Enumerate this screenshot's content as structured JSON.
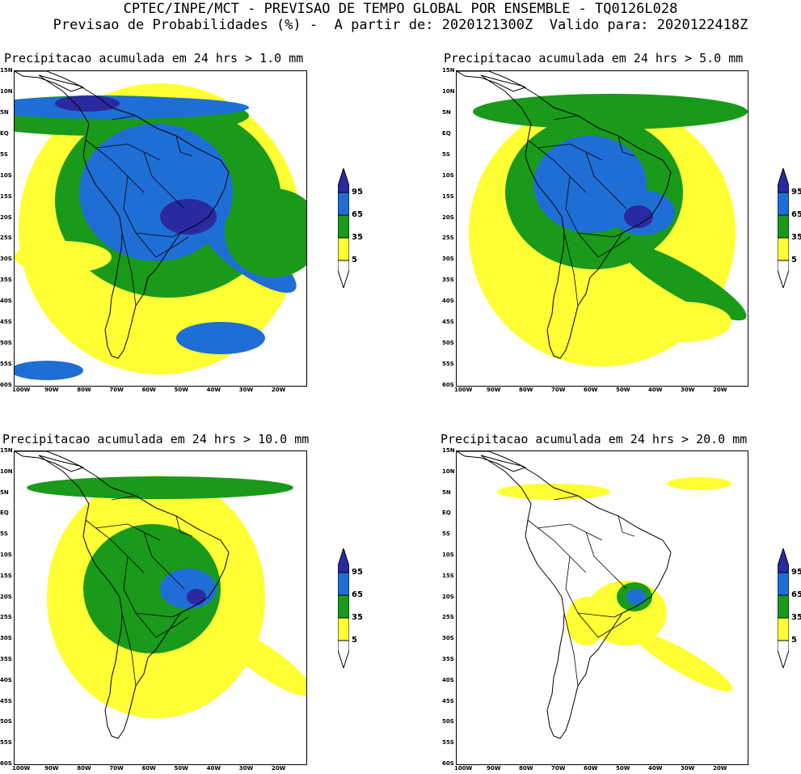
{
  "header": {
    "line1": "CPTEC/INPE/MCT - PREVISAO DE TEMPO GLOBAL POR ENSEMBLE - TQ0126L028",
    "line2": "Previsao de Probabilidades (%) -  A partir de: 2020121300Z  Valido para: 2020122418Z"
  },
  "panels": [
    {
      "title": "Precipitacao acumulada em 24 hrs > 1.0 mm"
    },
    {
      "title": "Precipitacao acumulada em 24 hrs > 5.0 mm"
    },
    {
      "title": "Precipitacao acumulada em 24 hrs > 10.0 mm"
    },
    {
      "title": "Precipitacao acumulada em 24 hrs > 20.0 mm"
    }
  ],
  "axes": {
    "lat_labels": [
      "15N",
      "10N",
      "5N",
      "EQ",
      "5S",
      "10S",
      "15S",
      "20S",
      "25S",
      "30S",
      "35S",
      "40S",
      "45S",
      "50S",
      "55S",
      "60S"
    ],
    "lon_labels": [
      "100W",
      "90W",
      "80W",
      "70W",
      "60W",
      "50W",
      "40W",
      "30W",
      "20W"
    ]
  },
  "colorbar": {
    "labels": [
      "95",
      "65",
      "35",
      "5"
    ],
    "colors": {
      "yellow": "#ffff33",
      "green": "#1a9a1a",
      "blue": "#1f6ed6",
      "navy": "#2a2aa0"
    }
  }
}
